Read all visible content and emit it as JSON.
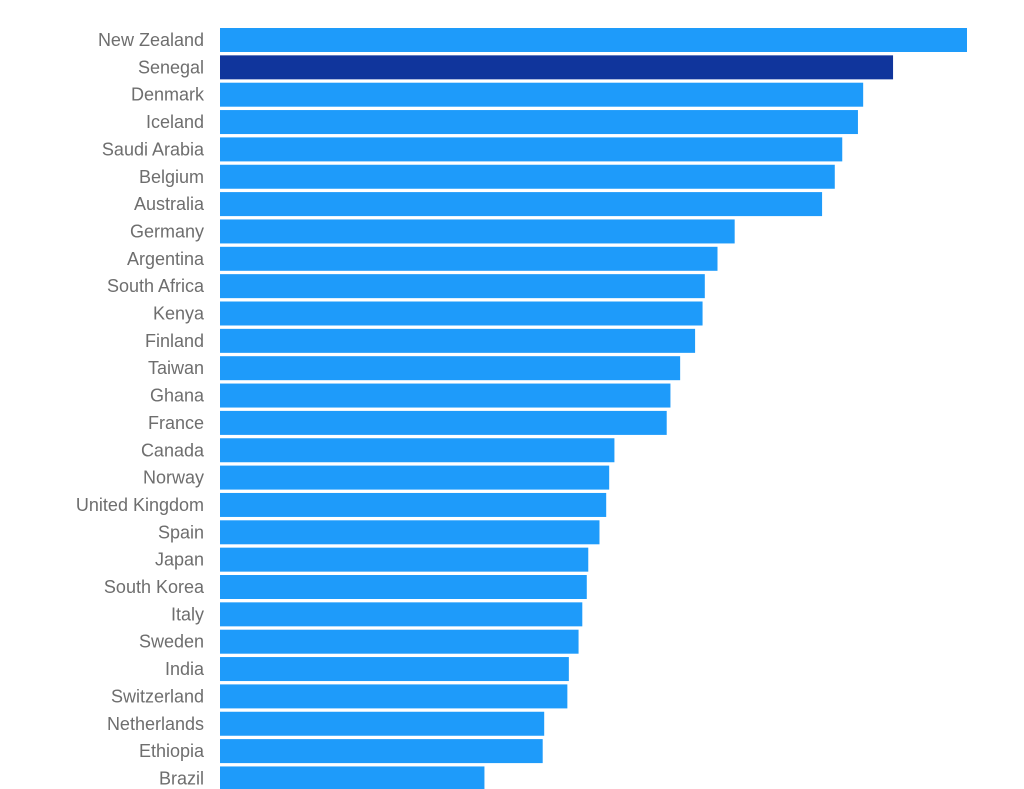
{
  "chart_data": {
    "type": "bar",
    "orientation": "horizontal",
    "categories": [
      "New Zealand",
      "Senegal",
      "Denmark",
      "Iceland",
      "Saudi Arabia",
      "Belgium",
      "Australia",
      "Germany",
      "Argentina",
      "South Africa",
      "Kenya",
      "Finland",
      "Taiwan",
      "Ghana",
      "France",
      "Canada",
      "Norway",
      "United Kingdom",
      "Spain",
      "Japan",
      "South Korea",
      "Italy",
      "Sweden",
      "India",
      "Switzerland",
      "Netherlands",
      "Ethiopia",
      "Brazil"
    ],
    "values": [
      100,
      90.1,
      86.1,
      85.4,
      83.3,
      82.3,
      80.6,
      68.9,
      66.6,
      64.9,
      64.6,
      63.6,
      61.6,
      60.3,
      59.8,
      52.8,
      52.1,
      51.7,
      50.8,
      49.3,
      49.1,
      48.5,
      48.0,
      46.7,
      46.5,
      43.4,
      43.2,
      35.4
    ],
    "highlight": "Senegal",
    "colors": {
      "bar": "#1e9bfa",
      "highlight": "#10359c",
      "label": "#6e6e6e"
    },
    "xlim": [
      0,
      100
    ],
    "grid": false,
    "title": "",
    "xlabel": "",
    "ylabel": ""
  }
}
